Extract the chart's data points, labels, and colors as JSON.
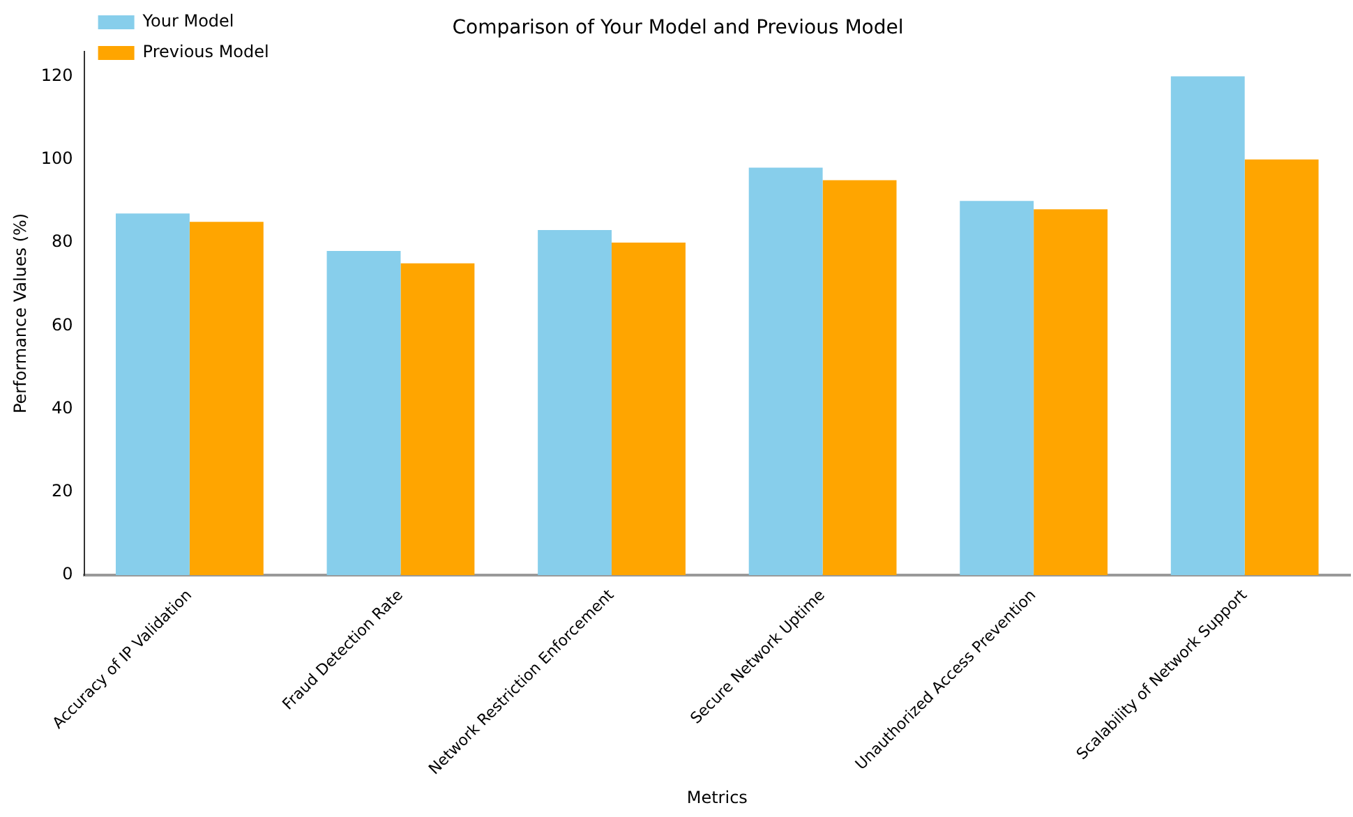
{
  "chart_data": {
    "type": "bar",
    "title": "Comparison of Your Model and Previous Model",
    "xlabel": "Metrics",
    "ylabel": "Performance Values (%)",
    "categories": [
      "Accuracy of IP Validation",
      "Fraud Detection Rate",
      "Network Restriction Enforcement",
      "Secure Network Uptime",
      "Unauthorized Access Prevention",
      "Scalability of Network Support"
    ],
    "series": [
      {
        "name": "Your Model",
        "color": "#87ceeb",
        "values": [
          87,
          78,
          83,
          98,
          90,
          120
        ]
      },
      {
        "name": "Previous Model",
        "color": "#ffa500",
        "values": [
          85,
          75,
          80,
          95,
          88,
          100
        ]
      }
    ],
    "ylim": [
      0,
      126
    ],
    "yticks": [
      0,
      20,
      40,
      60,
      80,
      100,
      120
    ],
    "grid": false,
    "legend": "top left"
  }
}
